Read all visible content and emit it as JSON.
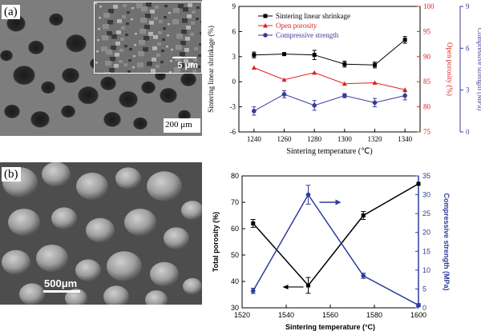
{
  "panel_a": {
    "label": "(a)",
    "inset_scale": "5 μm",
    "main_scale": "200 μm"
  },
  "panel_b": {
    "label": "(b)",
    "scale": "500μm"
  },
  "chart_data": [
    {
      "type": "line",
      "xlabel": "Sintering temperature (℃)",
      "x": [
        1240,
        1260,
        1280,
        1300,
        1320,
        1340
      ],
      "xlim": [
        1230,
        1350
      ],
      "xticks": [
        "1240",
        "1260",
        "1280",
        "1300",
        "1320",
        "1340"
      ],
      "axes": {
        "left": {
          "label": "Sintering linear shrinkage (%)",
          "ylim": [
            -6,
            9
          ],
          "ticks": [
            "-6",
            "-3",
            "0",
            "3",
            "6",
            "9"
          ],
          "color": "#000000"
        },
        "right1": {
          "label": "Open porosity (%)",
          "ylim": [
            75,
            100
          ],
          "ticks": [
            "75",
            "80",
            "85",
            "90",
            "95",
            "100"
          ],
          "color": "#e02020"
        },
        "right2": {
          "label": "Compressive strength (MPa)",
          "ylim": [
            0,
            9
          ],
          "ticks": [
            "0",
            "3",
            "6",
            "9"
          ],
          "color": "#3a3a9a"
        }
      },
      "series": [
        {
          "name": "Sintering linear shrinkage",
          "axis": "left",
          "color": "#000000",
          "marker": "square",
          "values": [
            3.2,
            3.3,
            3.2,
            2.1,
            2.0,
            5.0
          ],
          "errors": [
            0.35,
            0.1,
            0.55,
            0.35,
            0.35,
            0.4
          ]
        },
        {
          "name": "Open porosity",
          "axis": "right1",
          "color": "#e02020",
          "marker": "triangle",
          "values": [
            87.8,
            85.4,
            86.8,
            84.6,
            84.8,
            83.4
          ],
          "errors": [
            0,
            0,
            0,
            0,
            0,
            0
          ]
        },
        {
          "name": "Compressive strength",
          "axis": "right2",
          "color": "#3a3a9a",
          "marker": "circle",
          "values": [
            1.5,
            2.7,
            1.9,
            2.6,
            2.1,
            2.6
          ],
          "errors": [
            0.3,
            0.25,
            0.35,
            0.15,
            0.3,
            0.3
          ]
        }
      ],
      "legend": "top"
    },
    {
      "type": "line",
      "xlabel": "Sintering temperature (°C)",
      "x": [
        1525,
        1550,
        1575,
        1600
      ],
      "xlim": [
        1520,
        1600
      ],
      "xticks": [
        "1520",
        "1540",
        "1560",
        "1580",
        "1600"
      ],
      "axes": {
        "left": {
          "label": "Total porosity (%)",
          "ylim": [
            30,
            80
          ],
          "ticks": [
            "30",
            "40",
            "50",
            "60",
            "70",
            "80"
          ],
          "color": "#000000"
        },
        "right": {
          "label": "Compressive strength (MPa)",
          "ylim": [
            0,
            35
          ],
          "ticks": [
            "0",
            "5",
            "10",
            "15",
            "20",
            "25",
            "30",
            "35"
          ],
          "color": "#2f3d9a"
        }
      },
      "series": [
        {
          "axis": "left",
          "color": "#000000",
          "marker": "square",
          "values": [
            62,
            38.5,
            65,
            77
          ],
          "errors": [
            1.5,
            3,
            1.5,
            0
          ]
        },
        {
          "axis": "right",
          "color": "#2f3d9a",
          "marker": "circle",
          "values": [
            4.5,
            30,
            8.5,
            0.7
          ],
          "errors": [
            0.7,
            2.5,
            0.7,
            0.4
          ]
        }
      ]
    }
  ]
}
